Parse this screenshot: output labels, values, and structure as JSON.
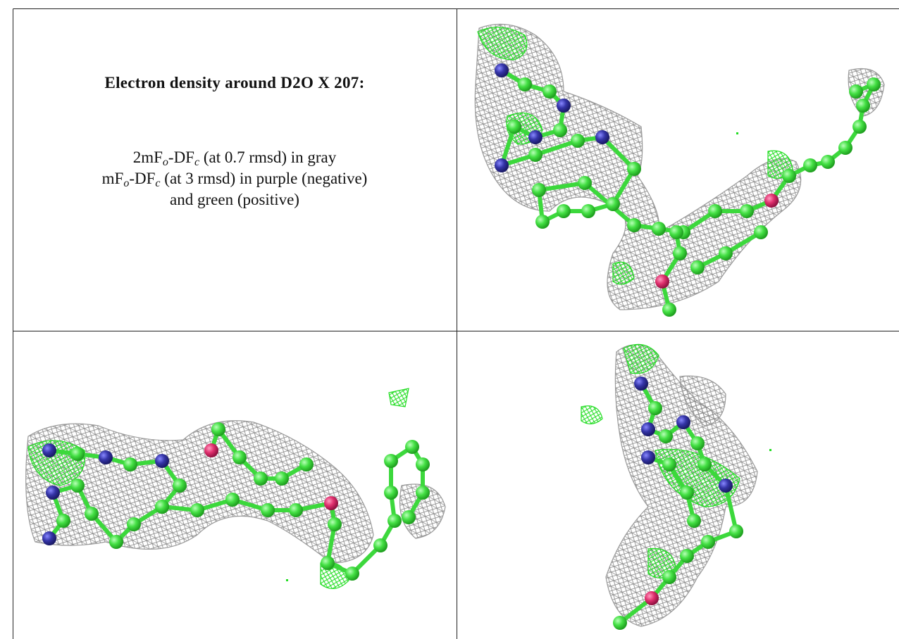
{
  "document": {
    "caption": {
      "title": "Electron density around D2O X 207:",
      "lines": [
        [
          "2mF",
          "o",
          "-DF",
          "c",
          " (at 0.7 rmsd) in gray"
        ],
        [
          "mF",
          "o",
          "-DF",
          "c",
          " (at 3 rmsd) in purple (negative)"
        ],
        [
          "and green (positive)"
        ]
      ]
    }
  }
}
